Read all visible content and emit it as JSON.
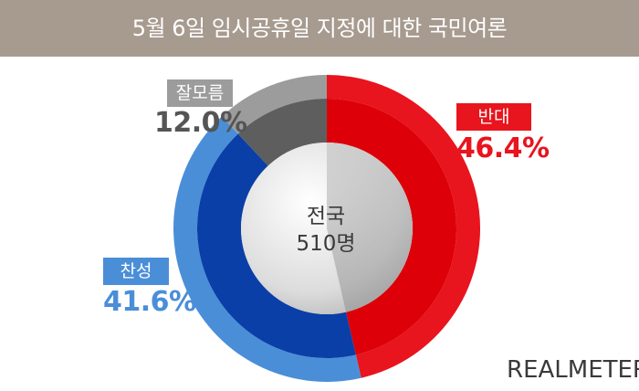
{
  "title": "5월 6일 임시공휴일 지정에 대한 국민여론",
  "center": {
    "region": "전국",
    "sample": "510명"
  },
  "brand": "REALMETER",
  "colors": {
    "title_bg": "#a79a8f",
    "oppose": "#e8141e",
    "support": "#4a8ed8",
    "dontknow": "#9c9c9c"
  },
  "chart_data": {
    "type": "pie",
    "title": "5월 6일 임시공휴일 지정에 대한 국민여론",
    "series": [
      {
        "name": "반대",
        "value": 46.4,
        "label": "46.4%",
        "color": "#e8141e"
      },
      {
        "name": "찬성",
        "value": 41.6,
        "label": "41.6%",
        "color": "#4a8ed8"
      },
      {
        "name": "잘모름",
        "value": 12.0,
        "label": "12.0%",
        "color": "#9c9c9c"
      }
    ]
  }
}
